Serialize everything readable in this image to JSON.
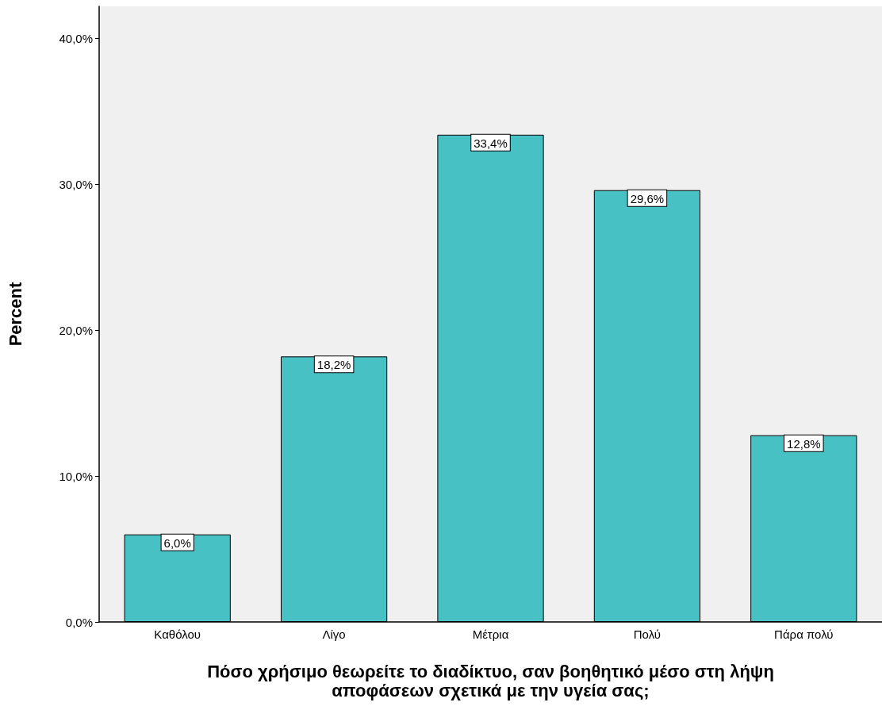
{
  "chart_data": {
    "type": "bar",
    "xlabel": "Πόσο χρήσιμο θεωρείτε το διαδίκτυο, σαν βοηθητικό μέσο στη λήψη αποφάσεων σχετικά με την υγεία σας;",
    "ylabel": "Percent",
    "categories": [
      "Καθόλου",
      "Λίγο",
      "Μέτρια",
      "Πολύ",
      "Πάρα πολύ"
    ],
    "values": [
      6.0,
      18.2,
      33.4,
      29.6,
      12.8
    ],
    "value_labels": [
      "6,0%",
      "18,2%",
      "33,4%",
      "29,6%",
      "12,8%"
    ],
    "color": "#48c1c5",
    "ylim": [
      0,
      42.2
    ],
    "yticks": [
      {
        "value": 0,
        "label": "0,0%"
      },
      {
        "value": 10,
        "label": "10,0%"
      },
      {
        "value": 20,
        "label": "20,0%"
      },
      {
        "value": 30,
        "label": "30,0%"
      },
      {
        "value": 40,
        "label": "40,0%"
      }
    ],
    "grid": false
  }
}
